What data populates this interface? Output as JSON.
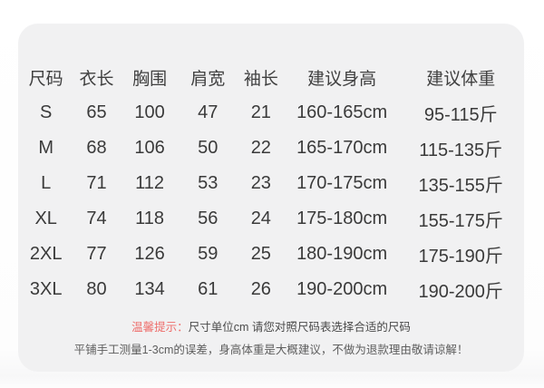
{
  "card": {
    "table": {
      "headers": [
        "尺码",
        "衣长",
        "胸围",
        "肩宽",
        "袖长",
        "建议身高",
        "建议体重"
      ],
      "rows": [
        [
          "S",
          "65",
          "100",
          "47",
          "21",
          "160-165cm",
          "95-115斤"
        ],
        [
          "M",
          "68",
          "106",
          "50",
          "22",
          "165-170cm",
          "115-135斤"
        ],
        [
          "L",
          "71",
          "112",
          "53",
          "23",
          "170-175cm",
          "135-155斤"
        ],
        [
          "XL",
          "74",
          "118",
          "56",
          "24",
          "175-180cm",
          "155-175斤"
        ],
        [
          "2XL",
          "77",
          "126",
          "59",
          "25",
          "180-190cm",
          "175-190斤"
        ],
        [
          "3XL",
          "80",
          "134",
          "61",
          "26",
          "190-200cm",
          "190-200斤"
        ]
      ]
    },
    "notes": {
      "tip_label": "温馨提示：",
      "tip_text": "尺寸单位cm 请您对照尺码表选择合适的尺码",
      "disclaimer": "平铺手工测量1-3cm的误差，身高体重是大概建议，不做为退款理由敬请谅解！"
    },
    "colors": {
      "card_background": "#f1f1f2",
      "tip_label_color": "#ee6e6c",
      "table_text_color": "#3a3a3a"
    }
  }
}
